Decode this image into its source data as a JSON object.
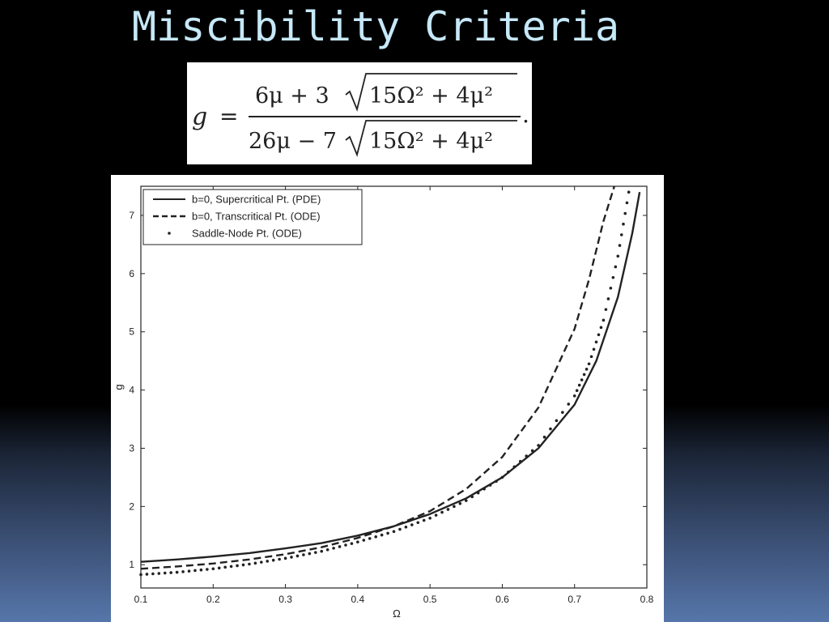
{
  "slide": {
    "title": "Miscibility Criteria"
  },
  "formula": {
    "lhs": "g",
    "equals": "=",
    "numerator": {
      "first": "6μ + 3",
      "radicand": "15Ω² + 4μ²"
    },
    "denominator": {
      "first": "26μ − 7",
      "radicand": "15Ω² + 4μ²"
    },
    "trailing": "."
  },
  "colors": {
    "title": "#c6e8f8",
    "background_top": "#000000",
    "background_bottom": "#5676aa",
    "chart_ink": "#222222"
  },
  "chart_data": {
    "type": "line",
    "title": "",
    "xlabel": "Ω",
    "ylabel": "g",
    "xlim": [
      0.1,
      0.8
    ],
    "ylim": [
      0.6,
      7.5
    ],
    "xticks": [
      0.1,
      0.2,
      0.3,
      0.4,
      0.5,
      0.6,
      0.7,
      0.8
    ],
    "xtick_labels": [
      "0.1",
      "0.2",
      "0.3",
      "0.4",
      "0.5",
      "0.6",
      "0.7",
      "0.8"
    ],
    "yticks": [
      1,
      2,
      3,
      4,
      5,
      6,
      7
    ],
    "ytick_labels": [
      "1",
      "2",
      "3",
      "4",
      "5",
      "6",
      "7"
    ],
    "grid": false,
    "legend_position": "top-left",
    "series": [
      {
        "name": "b=0, Supercritical Pt. (PDE)",
        "style": "solid",
        "x": [
          0.1,
          0.15,
          0.2,
          0.25,
          0.3,
          0.35,
          0.4,
          0.45,
          0.5,
          0.55,
          0.6,
          0.65,
          0.7,
          0.73,
          0.76,
          0.78,
          0.79
        ],
        "y": [
          1.05,
          1.09,
          1.14,
          1.2,
          1.28,
          1.37,
          1.5,
          1.66,
          1.87,
          2.14,
          2.5,
          3.0,
          3.75,
          4.5,
          5.6,
          6.7,
          7.4
        ]
      },
      {
        "name": "b=0, Transcritical Pt. (ODE)",
        "style": "dashed",
        "x": [
          0.1,
          0.15,
          0.2,
          0.25,
          0.3,
          0.35,
          0.4,
          0.45,
          0.5,
          0.55,
          0.6,
          0.65,
          0.7,
          0.72,
          0.74,
          0.755
        ],
        "y": [
          0.93,
          0.97,
          1.02,
          1.09,
          1.18,
          1.3,
          1.46,
          1.66,
          1.92,
          2.3,
          2.85,
          3.7,
          5.05,
          5.9,
          6.9,
          7.5
        ]
      },
      {
        "name": "Saddle-Node Pt. (ODE)",
        "style": "dotted",
        "x": [
          0.1,
          0.15,
          0.2,
          0.25,
          0.3,
          0.35,
          0.4,
          0.45,
          0.5,
          0.55,
          0.6,
          0.65,
          0.7,
          0.72,
          0.74,
          0.76,
          0.775
        ],
        "y": [
          0.83,
          0.87,
          0.93,
          1.01,
          1.11,
          1.23,
          1.39,
          1.57,
          1.8,
          2.1,
          2.5,
          3.05,
          3.9,
          4.45,
          5.2,
          6.3,
          7.4
        ]
      }
    ]
  }
}
